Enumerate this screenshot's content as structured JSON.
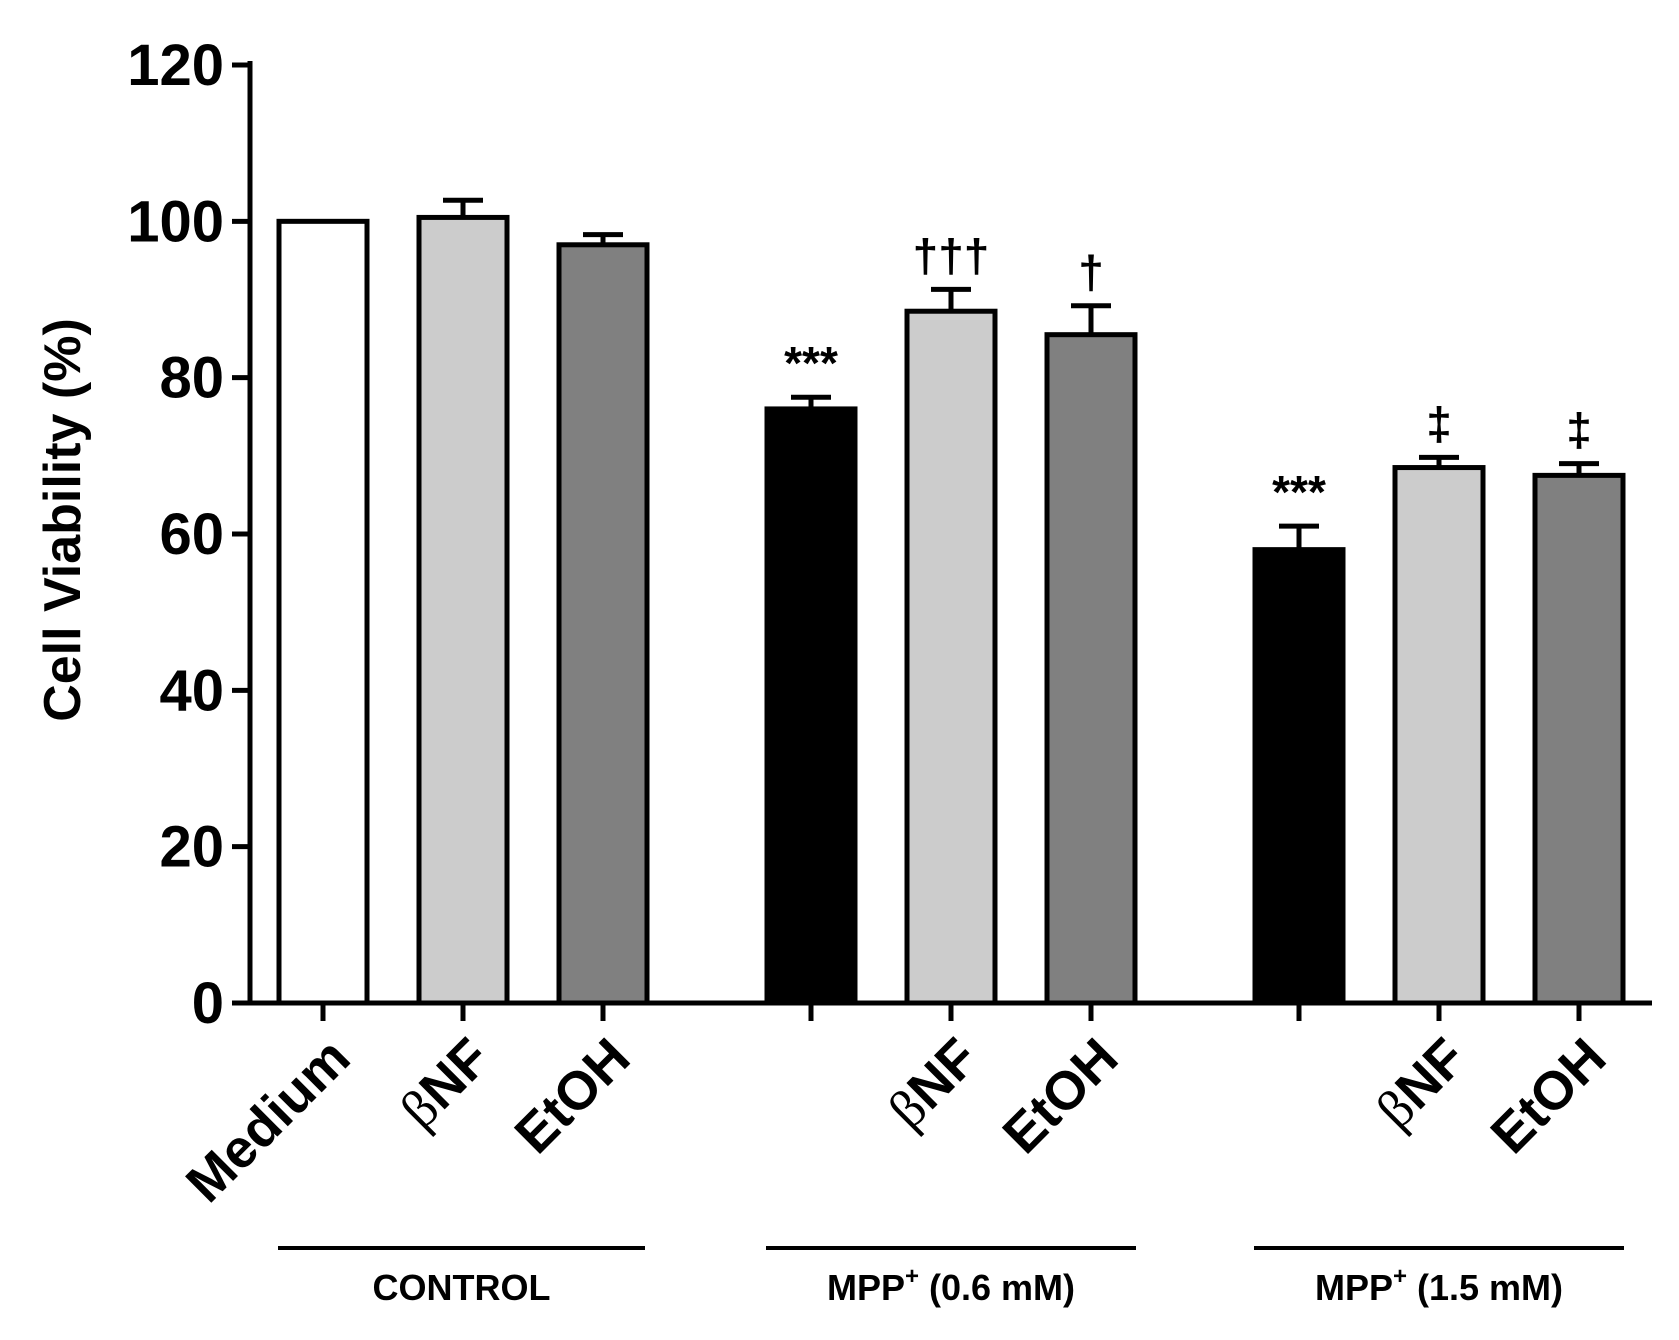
{
  "chart_data": {
    "type": "bar",
    "title": "",
    "xlabel": "",
    "ylabel": "Cell Viability (%)",
    "ylim": [
      0,
      120
    ],
    "yticks": [
      0,
      20,
      40,
      60,
      80,
      100,
      120
    ],
    "colors": {
      "black": "#000000",
      "light_gray": "#cccccc",
      "dark_gray": "#808080",
      "white": "#ffffff"
    },
    "bars": [
      {
        "group": "CONTROL",
        "prefix": "",
        "label": "Medium",
        "value": 100,
        "error": 0,
        "fill": "#ffffff",
        "annotation": ""
      },
      {
        "group": "CONTROL",
        "prefix": "β",
        "label": "NF",
        "value": 100.5,
        "error": 2.2,
        "fill": "#cccccc",
        "annotation": ""
      },
      {
        "group": "CONTROL",
        "prefix": "",
        "label": "EtOH",
        "value": 97,
        "error": 1.3,
        "fill": "#808080",
        "annotation": ""
      },
      {
        "group": "MPP+ (0.6 mM)",
        "prefix": "",
        "label": "",
        "value": 76,
        "error": 1.5,
        "fill": "#000000",
        "annotation": "***"
      },
      {
        "group": "MPP+ (0.6 mM)",
        "prefix": "β",
        "label": "NF",
        "value": 88.5,
        "error": 2.8,
        "fill": "#cccccc",
        "annotation": "†††"
      },
      {
        "group": "MPP+ (0.6 mM)",
        "prefix": "",
        "label": "EtOH",
        "value": 85.5,
        "error": 3.7,
        "fill": "#808080",
        "annotation": "†"
      },
      {
        "group": "MPP+ (1.5 mM)",
        "prefix": "",
        "label": "",
        "value": 58,
        "error": 3.0,
        "fill": "#000000",
        "annotation": "***"
      },
      {
        "group": "MPP+ (1.5 mM)",
        "prefix": "β",
        "label": "NF",
        "value": 68.5,
        "error": 1.3,
        "fill": "#cccccc",
        "annotation": "‡"
      },
      {
        "group": "MPP+ (1.5 mM)",
        "prefix": "",
        "label": "EtOH",
        "value": 67.5,
        "error": 1.5,
        "fill": "#808080",
        "annotation": "‡"
      }
    ],
    "groups": [
      {
        "name": "CONTROL",
        "main": "CONTROL",
        "superscript": "",
        "rest": ""
      },
      {
        "name": "MPP+ (0.6 mM)",
        "main": "MPP",
        "superscript": "+",
        "rest": " (0.6 mM)"
      },
      {
        "name": "MPP+ (1.5 mM)",
        "main": "MPP",
        "superscript": "+",
        "rest": " (1.5 mM)"
      }
    ]
  }
}
